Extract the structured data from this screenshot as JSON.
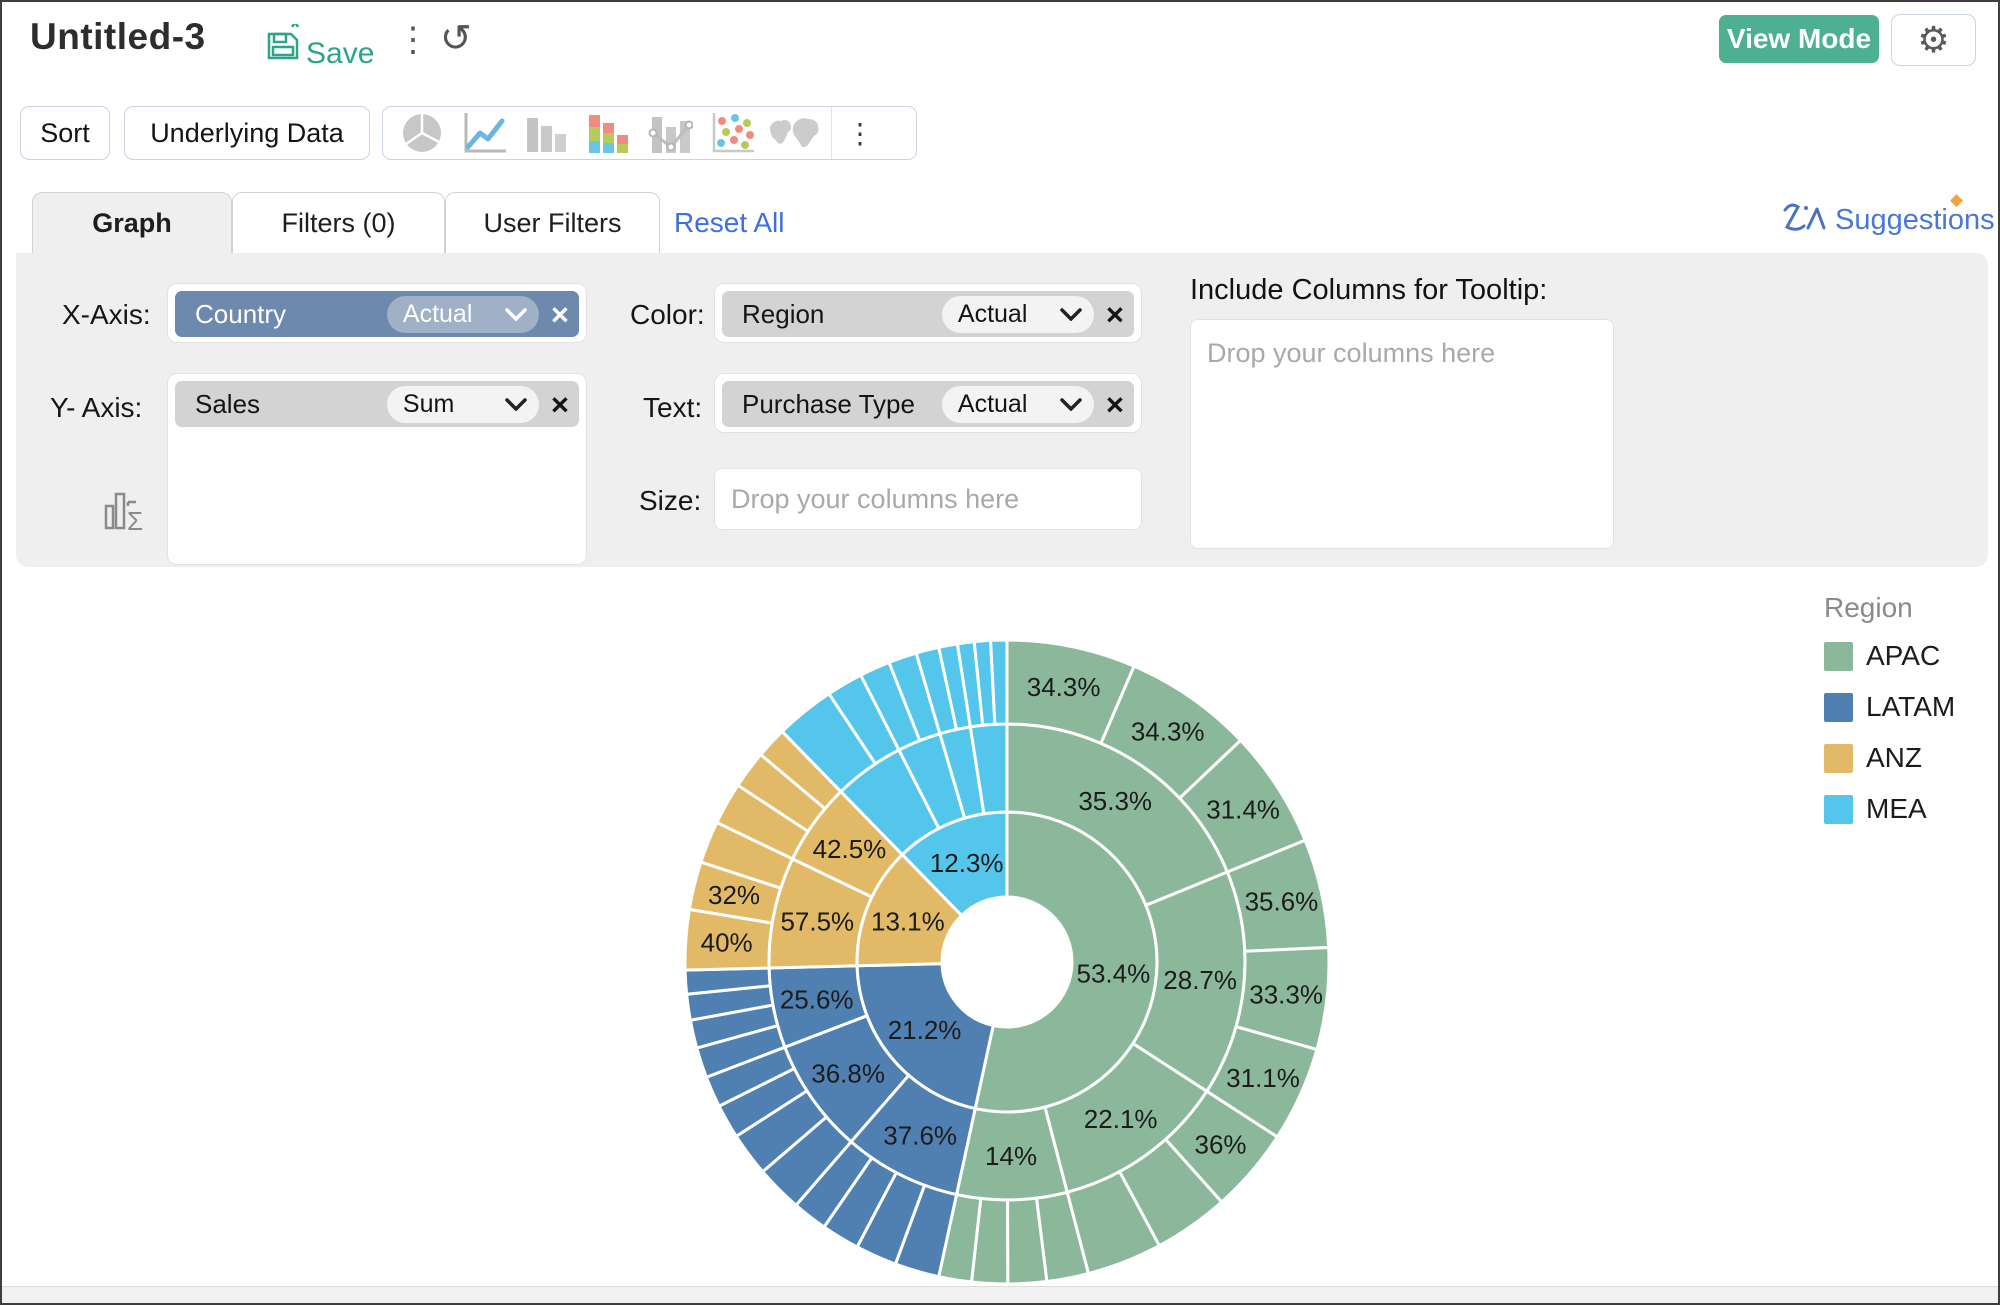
{
  "header": {
    "title": "Untitled-3",
    "save_label": "Save",
    "view_mode_label": "View Mode"
  },
  "toolbar": {
    "sort_label": "Sort",
    "underlying_data_label": "Underlying Data",
    "chart_type_icons": [
      "pie-chart",
      "line-chart",
      "bar-chart",
      "stacked-bar-chart",
      "combo-chart",
      "scatter-plot",
      "map"
    ]
  },
  "tabs": {
    "graph": "Graph",
    "filters": "Filters (0)",
    "user_filters": "User Filters",
    "reset_all": "Reset All",
    "suggestions": "Suggestions"
  },
  "config": {
    "x_axis": {
      "label": "X-Axis:",
      "field": "Country",
      "agg": "Actual"
    },
    "y_axis": {
      "label": "Y- Axis:",
      "field": "Sales",
      "agg": "Sum"
    },
    "color": {
      "label": "Color:",
      "field": "Region",
      "agg": "Actual"
    },
    "text": {
      "label": "Text:",
      "field": "Purchase Type",
      "agg": "Actual"
    },
    "size": {
      "label": "Size:",
      "placeholder": "Drop your columns here"
    },
    "tooltip": {
      "heading": "Include Columns for Tooltip:",
      "placeholder": "Drop your columns here"
    }
  },
  "legend": {
    "title": "Region",
    "items": [
      {
        "label": "APAC",
        "color": "#8BB89B"
      },
      {
        "label": "LATAM",
        "color": "#4F80B1"
      },
      {
        "label": "ANZ",
        "color": "#E2BA67"
      },
      {
        "label": "MEA",
        "color": "#55C6EB"
      }
    ]
  },
  "chart_data": {
    "type": "sunburst",
    "legend_title": "Region",
    "legend_position": "right",
    "note": "3-ring sunburst: inner=Region share of Sales, middle=sub-split within region, outer=split within middle segment. Unlabeled segment values estimated from arc sizes.",
    "rings": [
      "region",
      "level2",
      "level3"
    ],
    "regions": [
      {
        "name": "APAC",
        "color": "#8BB89B",
        "value": 53.4,
        "label": "53.4%",
        "children": [
          {
            "value": 35.3,
            "label": "35.3%",
            "children": [
              {
                "value": 34.3,
                "label": "34.3%"
              },
              {
                "value": 34.3,
                "label": "34.3%"
              },
              {
                "value": 31.4,
                "label": "31.4%"
              }
            ]
          },
          {
            "value": 28.7,
            "label": "28.7%",
            "children": [
              {
                "value": 35.6,
                "label": "35.6%"
              },
              {
                "value": 33.3,
                "label": "33.3%"
              },
              {
                "value": 31.1,
                "label": "31.1%"
              }
            ]
          },
          {
            "value": 22.1,
            "label": "22.1%",
            "children": [
              {
                "value": 36,
                "label": "36%"
              },
              {
                "value": 32,
                "label": ""
              },
              {
                "value": 32,
                "label": ""
              }
            ]
          },
          {
            "value": 14,
            "label": "14%",
            "children": [
              {
                "value": 28,
                "label": ""
              },
              {
                "value": 26,
                "label": ""
              },
              {
                "value": 24,
                "label": ""
              },
              {
                "value": 22,
                "label": ""
              }
            ]
          }
        ]
      },
      {
        "name": "LATAM",
        "color": "#4F80B1",
        "value": 21.2,
        "label": "21.2%",
        "children": [
          {
            "value": 37.6,
            "label": "37.6%",
            "children": [
              {
                "value": 28,
                "label": ""
              },
              {
                "value": 26,
                "label": ""
              },
              {
                "value": 24,
                "label": ""
              },
              {
                "value": 22,
                "label": ""
              }
            ]
          },
          {
            "value": 36.8,
            "label": "36.8%",
            "children": [
              {
                "value": 30,
                "label": ""
              },
              {
                "value": 28,
                "label": ""
              },
              {
                "value": 22,
                "label": ""
              },
              {
                "value": 20,
                "label": ""
              }
            ]
          },
          {
            "value": 25.6,
            "label": "25.6%",
            "children": [
              {
                "value": 28,
                "label": ""
              },
              {
                "value": 26,
                "label": ""
              },
              {
                "value": 24,
                "label": ""
              },
              {
                "value": 22,
                "label": ""
              }
            ]
          }
        ]
      },
      {
        "name": "ANZ",
        "color": "#E2BA67",
        "value": 13.1,
        "label": "13.1%",
        "children": [
          {
            "value": 57.5,
            "label": "57.5%",
            "children": [
              {
                "value": 40,
                "label": "40%"
              },
              {
                "value": 32,
                "label": "32%"
              },
              {
                "value": 28,
                "label": ""
              }
            ]
          },
          {
            "value": 42.5,
            "label": "42.5%",
            "children": [
              {
                "value": 38,
                "label": ""
              },
              {
                "value": 34,
                "label": ""
              },
              {
                "value": 28,
                "label": ""
              }
            ]
          }
        ]
      },
      {
        "name": "MEA",
        "color": "#55C6EB",
        "value": 12.3,
        "label": "12.3%",
        "children": [
          {
            "value": 39,
            "label": "",
            "children": [
              {
                "value": 62,
                "label": ""
              },
              {
                "value": 38,
                "label": ""
              }
            ]
          },
          {
            "value": 24,
            "label": "",
            "children": [
              {
                "value": 52,
                "label": ""
              },
              {
                "value": 48,
                "label": ""
              }
            ]
          },
          {
            "value": 17,
            "label": "",
            "children": [
              {
                "value": 55,
                "label": ""
              },
              {
                "value": 45,
                "label": ""
              }
            ]
          },
          {
            "value": 20,
            "label": "",
            "children": [
              {
                "value": 34,
                "label": ""
              },
              {
                "value": 33,
                "label": ""
              },
              {
                "value": 33,
                "label": ""
              }
            ]
          }
        ]
      }
    ]
  }
}
